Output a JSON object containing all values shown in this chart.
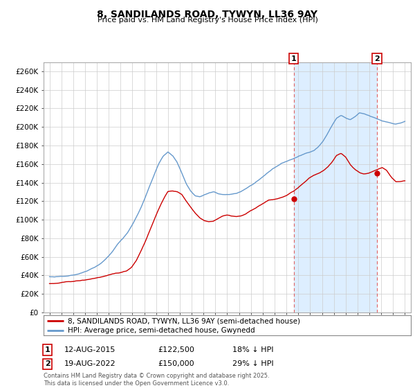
{
  "title": "8, SANDILANDS ROAD, TYWYN, LL36 9AY",
  "subtitle": "Price paid vs. HM Land Registry's House Price Index (HPI)",
  "ylabel_ticks": [
    "£0",
    "£20K",
    "£40K",
    "£60K",
    "£80K",
    "£100K",
    "£120K",
    "£140K",
    "£160K",
    "£180K",
    "£200K",
    "£220K",
    "£240K",
    "£260K"
  ],
  "ytick_values": [
    0,
    20000,
    40000,
    60000,
    80000,
    100000,
    120000,
    140000,
    160000,
    180000,
    200000,
    220000,
    240000,
    260000
  ],
  "ylim": [
    0,
    270000
  ],
  "xlim_start": 1994.5,
  "xlim_end": 2025.5,
  "xtick_years": [
    1995,
    1996,
    1997,
    1998,
    1999,
    2000,
    2001,
    2002,
    2003,
    2004,
    2005,
    2006,
    2007,
    2008,
    2009,
    2010,
    2011,
    2012,
    2013,
    2014,
    2015,
    2016,
    2017,
    2018,
    2019,
    2020,
    2021,
    2022,
    2023,
    2024,
    2025
  ],
  "sale1_x": 2015.617,
  "sale1_y": 122500,
  "sale1_label": "1",
  "sale2_x": 2022.633,
  "sale2_y": 150000,
  "sale2_label": "2",
  "sale1_vline_color": "#e06060",
  "sale2_vline_color": "#e06060",
  "hpi_line_color": "#6699cc",
  "price_line_color": "#cc0000",
  "bg_color": "#ffffff",
  "plot_bg_color": "#ffffff",
  "shade_bg_color": "#ddeeff",
  "grid_color": "#cccccc",
  "legend_border_color": "#cc0000",
  "legend1_text": "8, SANDILANDS ROAD, TYWYN, LL36 9AY (semi-detached house)",
  "legend2_text": "HPI: Average price, semi-detached house, Gwynedd",
  "annotation1_date": "12-AUG-2015",
  "annotation1_price": "£122,500",
  "annotation1_hpi": "18% ↓ HPI",
  "annotation2_date": "19-AUG-2022",
  "annotation2_price": "£150,000",
  "annotation2_hpi": "29% ↓ HPI",
  "footnote": "Contains HM Land Registry data © Crown copyright and database right 2025.\nThis data is licensed under the Open Government Licence v3.0."
}
